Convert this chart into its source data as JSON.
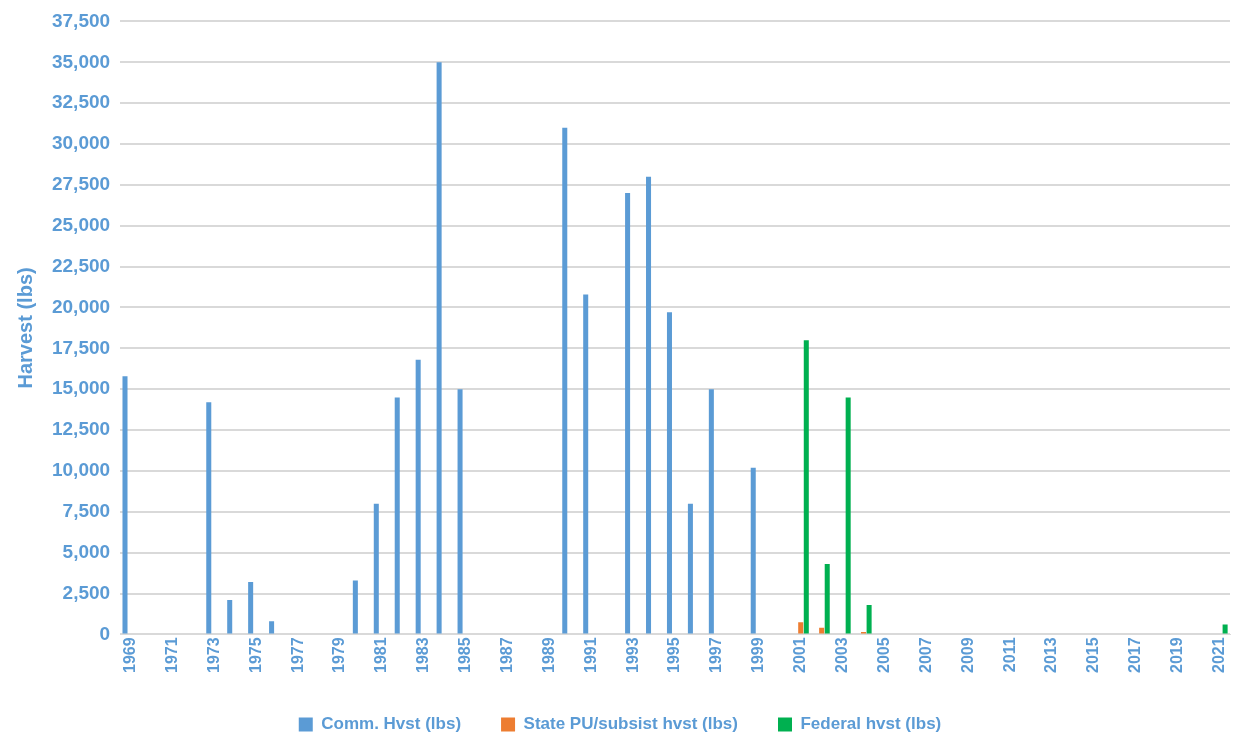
{
  "chart_data": {
    "type": "bar",
    "ylabel": "Harvest (lbs)",
    "categories": [
      "1969",
      null,
      "1971",
      null,
      "1973",
      null,
      "1975",
      null,
      "1977",
      null,
      "1979",
      null,
      "1981",
      null,
      "1983",
      null,
      "1985",
      null,
      "1987",
      null,
      "1989",
      null,
      "1991",
      null,
      "1993",
      null,
      "1995",
      null,
      "1997",
      null,
      "1999",
      null,
      "2001",
      null,
      "2003",
      null,
      "2005",
      null,
      "2007",
      null,
      "2009",
      null,
      "2011",
      null,
      "2013",
      null,
      "2015",
      null,
      "2017",
      null,
      "2019",
      null,
      "2021"
    ],
    "series": [
      {
        "name": "Comm. Hvst (lbs)",
        "color": "#5b9bd5",
        "values": [
          15800,
          null,
          null,
          null,
          14200,
          2100,
          3200,
          800,
          null,
          null,
          null,
          3300,
          8000,
          14500,
          16800,
          35000,
          15000,
          null,
          null,
          null,
          null,
          31000,
          20800,
          null,
          27000,
          28000,
          19700,
          8000,
          15000,
          null,
          10200,
          null,
          null,
          null,
          null,
          null,
          null,
          null,
          null,
          null,
          null,
          null,
          null,
          null,
          null,
          null,
          null,
          null,
          null,
          null,
          null,
          null,
          null
        ]
      },
      {
        "name": "State PU/subsist hvst (lbs)",
        "color": "#ed7d31",
        "values": [
          null,
          null,
          null,
          null,
          null,
          null,
          null,
          null,
          null,
          null,
          null,
          null,
          null,
          null,
          null,
          null,
          null,
          null,
          null,
          null,
          null,
          null,
          null,
          null,
          null,
          null,
          null,
          null,
          null,
          null,
          null,
          null,
          750,
          400,
          null,
          150,
          null,
          null,
          null,
          null,
          null,
          null,
          null,
          null,
          null,
          null,
          null,
          null,
          null,
          null,
          null,
          null,
          null
        ]
      },
      {
        "name": "Federal hvst (lbs)",
        "color": "#00b050",
        "values": [
          null,
          null,
          null,
          null,
          null,
          null,
          null,
          null,
          null,
          null,
          null,
          null,
          null,
          null,
          null,
          null,
          null,
          null,
          null,
          null,
          null,
          null,
          null,
          null,
          null,
          null,
          null,
          null,
          null,
          null,
          null,
          null,
          18000,
          4300,
          14500,
          1800,
          null,
          null,
          null,
          null,
          null,
          null,
          null,
          null,
          null,
          null,
          null,
          null,
          null,
          null,
          null,
          null,
          600
        ]
      }
    ],
    "ylim": [
      0,
      37500
    ],
    "yticks": [
      {
        "value": 0,
        "label": "0"
      },
      {
        "value": 2500,
        "label": "2,500"
      },
      {
        "value": 5000,
        "label": "5,000"
      },
      {
        "value": 7500,
        "label": "7,500"
      },
      {
        "value": 10000,
        "label": "10,000"
      },
      {
        "value": 12500,
        "label": "12,500"
      },
      {
        "value": 15000,
        "label": "15,000"
      },
      {
        "value": 17500,
        "label": "17,500"
      },
      {
        "value": 20000,
        "label": "20,000"
      },
      {
        "value": 22500,
        "label": "22,500"
      },
      {
        "value": 25000,
        "label": "25,000"
      },
      {
        "value": 27500,
        "label": "27,500"
      },
      {
        "value": 30000,
        "label": "30,000"
      },
      {
        "value": 32500,
        "label": "32,500"
      },
      {
        "value": 35000,
        "label": "35,000"
      },
      {
        "value": 37500,
        "label": "37,500"
      }
    ],
    "grid": "y",
    "legend": "bottom"
  }
}
